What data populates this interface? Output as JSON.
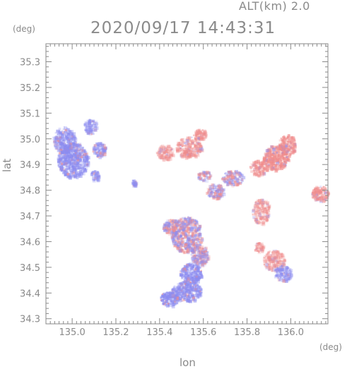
{
  "header": {
    "altitude_label": "ALT(km) 2.0",
    "timestamp": "2020/09/17 14:43:31"
  },
  "chart_data": {
    "type": "heatmap",
    "title": "2020/09/17 14:43:31",
    "subtitle": "ALT(km) 2.0",
    "xlabel": "lon",
    "ylabel": "lat",
    "x_unit": "(deg)",
    "y_unit": "(deg)",
    "xlim": [
      134.88,
      136.17
    ],
    "ylim": [
      34.28,
      35.37
    ],
    "x_ticks": [
      "135.0",
      "135.2",
      "135.4",
      "135.6",
      "135.8",
      "136.0"
    ],
    "x_tick_values": [
      135.0,
      135.2,
      135.4,
      135.6,
      135.8,
      136.0
    ],
    "y_ticks": [
      "34.3",
      "34.4",
      "34.5",
      "34.6",
      "34.7",
      "34.8",
      "34.9",
      "35.0",
      "35.1",
      "35.2",
      "35.3"
    ],
    "y_tick_values": [
      34.3,
      34.4,
      34.5,
      34.6,
      34.7,
      34.8,
      34.9,
      35.0,
      35.1,
      35.2,
      35.3
    ],
    "grid": false,
    "colors": {
      "negative": "#8c8cf0",
      "positive": "#f08c8c",
      "axis": "#8a8a8a"
    },
    "regions": [
      {
        "lon": 135.0,
        "lat": 34.92,
        "rlon": 0.07,
        "rlat": 0.07,
        "sign": -1,
        "alpha": 0.45
      },
      {
        "lon": 134.96,
        "lat": 35.0,
        "rlon": 0.05,
        "rlat": 0.05,
        "sign": -1,
        "alpha": 0.4
      },
      {
        "lon": 135.08,
        "lat": 35.05,
        "rlon": 0.03,
        "rlat": 0.03,
        "sign": -1,
        "alpha": 0.35
      },
      {
        "lon": 135.12,
        "lat": 34.96,
        "rlon": 0.03,
        "rlat": 0.03,
        "sign": -1,
        "alpha": 0.4
      },
      {
        "lon": 135.1,
        "lat": 34.86,
        "rlon": 0.02,
        "rlat": 0.02,
        "sign": -1,
        "alpha": 0.35
      },
      {
        "lon": 135.53,
        "lat": 34.97,
        "rlon": 0.06,
        "rlat": 0.04,
        "sign": 1,
        "alpha": 0.35
      },
      {
        "lon": 135.42,
        "lat": 34.95,
        "rlon": 0.04,
        "rlat": 0.03,
        "sign": 1,
        "alpha": 0.3
      },
      {
        "lon": 135.58,
        "lat": 35.02,
        "rlon": 0.03,
        "rlat": 0.02,
        "sign": 1,
        "alpha": 0.35
      },
      {
        "lon": 135.93,
        "lat": 34.93,
        "rlon": 0.06,
        "rlat": 0.05,
        "sign": 1,
        "alpha": 0.45
      },
      {
        "lon": 135.98,
        "lat": 34.98,
        "rlon": 0.04,
        "rlat": 0.04,
        "sign": 1,
        "alpha": 0.4
      },
      {
        "lon": 135.85,
        "lat": 34.89,
        "rlon": 0.04,
        "rlat": 0.03,
        "sign": 1,
        "alpha": 0.35
      },
      {
        "lon": 135.73,
        "lat": 34.85,
        "rlon": 0.05,
        "rlat": 0.03,
        "sign": 0,
        "alpha": 0.35
      },
      {
        "lon": 135.65,
        "lat": 34.8,
        "rlon": 0.04,
        "rlat": 0.03,
        "sign": 0,
        "alpha": 0.35
      },
      {
        "lon": 135.6,
        "lat": 34.86,
        "rlon": 0.03,
        "rlat": 0.02,
        "sign": 0,
        "alpha": 0.3
      },
      {
        "lon": 135.86,
        "lat": 34.72,
        "rlon": 0.04,
        "rlat": 0.05,
        "sign": 1,
        "alpha": 0.3
      },
      {
        "lon": 136.13,
        "lat": 34.79,
        "rlon": 0.04,
        "rlat": 0.03,
        "sign": 1,
        "alpha": 0.4
      },
      {
        "lon": 135.52,
        "lat": 34.63,
        "rlon": 0.07,
        "rlat": 0.07,
        "sign": 0,
        "alpha": 0.4
      },
      {
        "lon": 135.45,
        "lat": 34.66,
        "rlon": 0.04,
        "rlat": 0.03,
        "sign": 0,
        "alpha": 0.35
      },
      {
        "lon": 135.58,
        "lat": 34.55,
        "rlon": 0.04,
        "rlat": 0.04,
        "sign": 0,
        "alpha": 0.35
      },
      {
        "lon": 135.54,
        "lat": 34.48,
        "rlon": 0.05,
        "rlat": 0.04,
        "sign": -1,
        "alpha": 0.45
      },
      {
        "lon": 135.52,
        "lat": 34.41,
        "rlon": 0.07,
        "rlat": 0.04,
        "sign": -1,
        "alpha": 0.45
      },
      {
        "lon": 135.44,
        "lat": 34.38,
        "rlon": 0.04,
        "rlat": 0.03,
        "sign": -1,
        "alpha": 0.5
      },
      {
        "lon": 135.92,
        "lat": 34.53,
        "rlon": 0.05,
        "rlat": 0.04,
        "sign": 1,
        "alpha": 0.3
      },
      {
        "lon": 135.96,
        "lat": 34.48,
        "rlon": 0.04,
        "rlat": 0.03,
        "sign": -1,
        "alpha": 0.35
      },
      {
        "lon": 135.85,
        "lat": 34.58,
        "rlon": 0.02,
        "rlat": 0.02,
        "sign": 1,
        "alpha": 0.35
      },
      {
        "lon": 135.28,
        "lat": 34.83,
        "rlon": 0.01,
        "rlat": 0.015,
        "sign": -1,
        "alpha": 0.4
      }
    ]
  }
}
